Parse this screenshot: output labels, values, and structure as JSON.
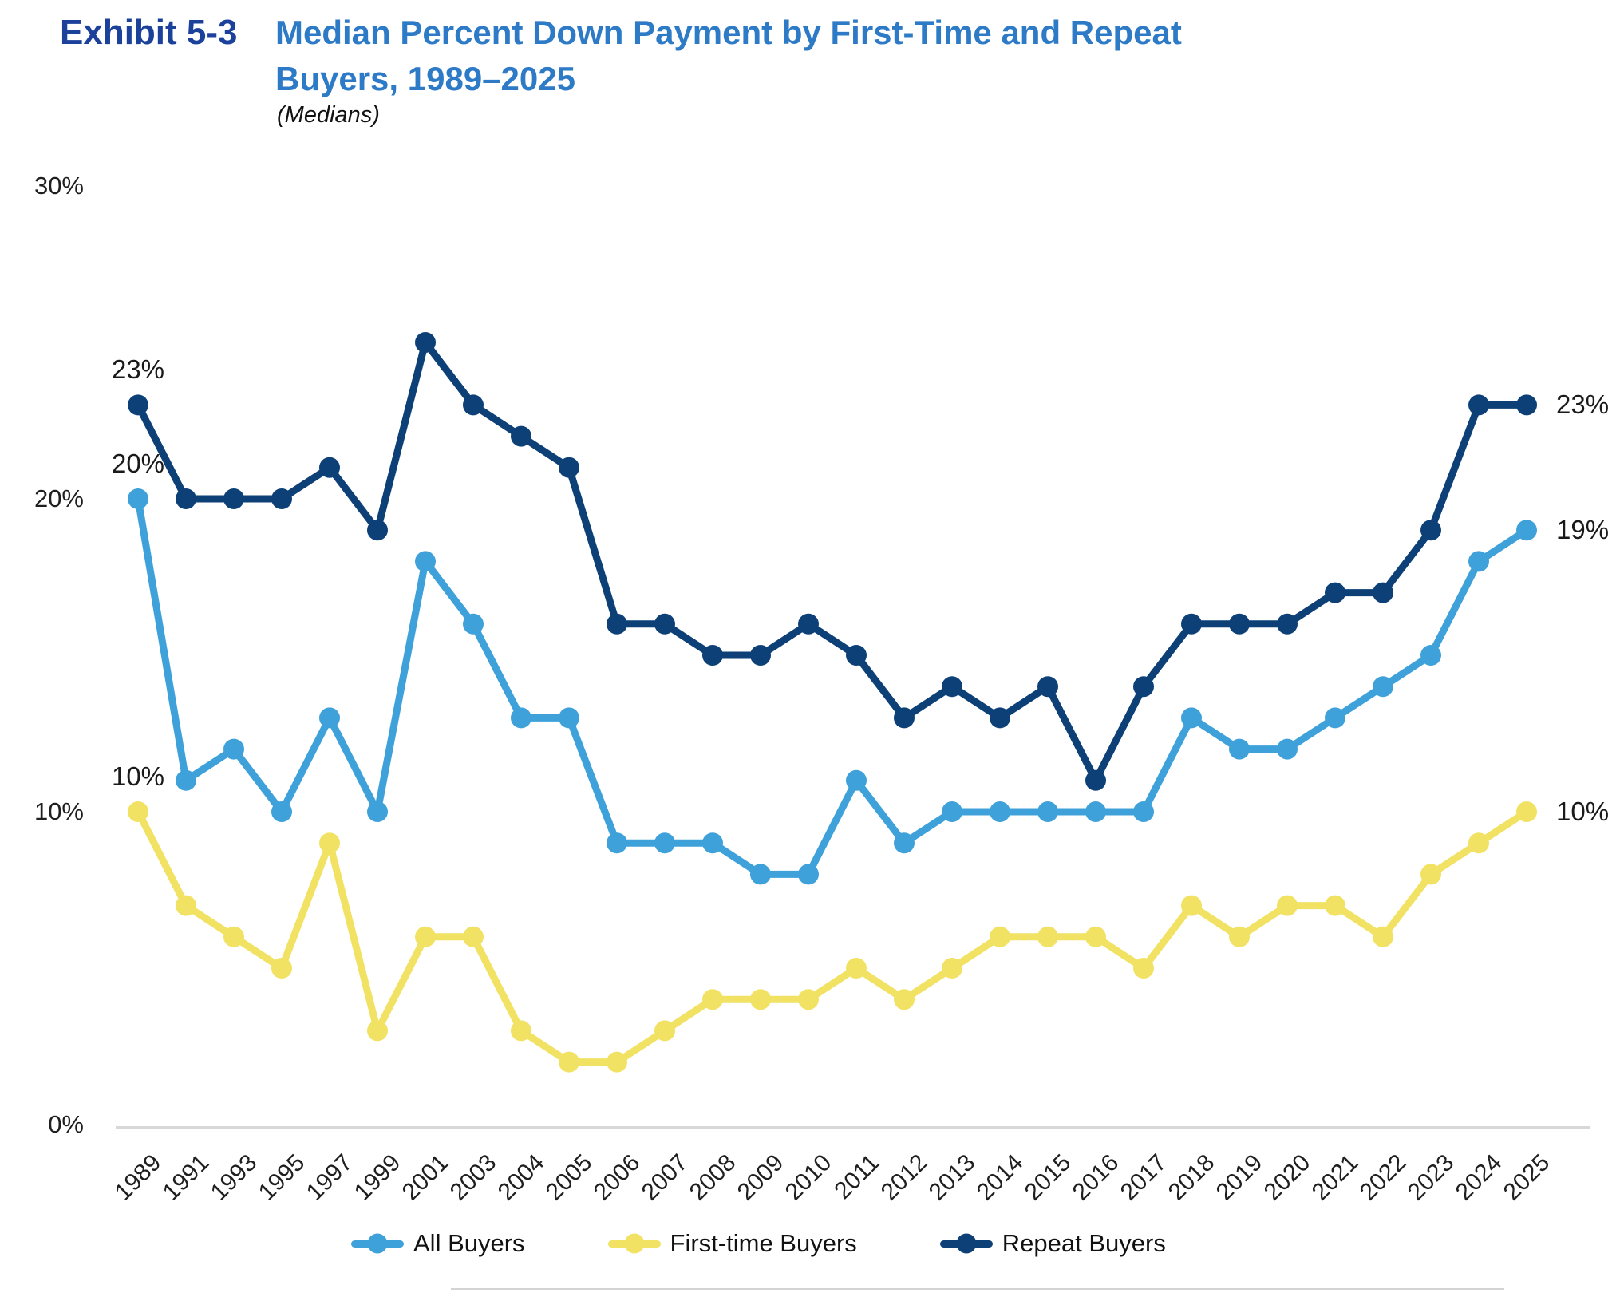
{
  "header": {
    "exhibit": "Exhibit 5-3",
    "title_line1": "Median Percent Down Payment by First-Time and Repeat",
    "title_line2": "Buyers, 1989–2025",
    "subtitle": "(Medians)"
  },
  "colors": {
    "all": "#3fa1da",
    "first_time": "#f1e263",
    "repeat": "#0d4076",
    "exhibit_blue": "#1c419b",
    "title_blue": "#2d7ac6",
    "axis_line": "#d8d8d8",
    "text": "#1f1f1f"
  },
  "chart_data": {
    "type": "line",
    "title": "Median Percent Down Payment by First-Time and Repeat Buyers, 1989–2025",
    "subtitle": "(Medians)",
    "categories": [
      "1989",
      "1991",
      "1993",
      "1995",
      "1997",
      "1999",
      "2001",
      "2003",
      "2004",
      "2005",
      "2006",
      "2007",
      "2008",
      "2009",
      "2010",
      "2011",
      "2012",
      "2013",
      "2014",
      "2015",
      "2016",
      "2017",
      "2018",
      "2019",
      "2020",
      "2021",
      "2022",
      "2023",
      "2024",
      "2025"
    ],
    "series": [
      {
        "name": "All Buyers",
        "color_key": "all",
        "values": [
          20,
          11,
          12,
          10,
          13,
          10,
          18,
          16,
          13,
          13,
          9,
          9,
          9,
          8,
          8,
          11,
          9,
          10,
          10,
          10,
          10,
          10,
          13,
          12,
          12,
          13,
          14,
          15,
          18,
          19
        ]
      },
      {
        "name": "First-time Buyers",
        "color_key": "first_time",
        "values": [
          10,
          7,
          6,
          5,
          9,
          3,
          6,
          6,
          3,
          2,
          2,
          3,
          4,
          4,
          4,
          5,
          4,
          5,
          6,
          6,
          6,
          5,
          7,
          6,
          7,
          7,
          6,
          8,
          9,
          10
        ]
      },
      {
        "name": "Repeat Buyers",
        "color_key": "repeat",
        "values": [
          23,
          20,
          20,
          20,
          21,
          19,
          25,
          23,
          22,
          21,
          16,
          16,
          15,
          15,
          16,
          15,
          13,
          14,
          13,
          14,
          11,
          14,
          16,
          16,
          16,
          17,
          17,
          19,
          23,
          23
        ]
      }
    ],
    "ylim": [
      0,
      30
    ],
    "grid": false,
    "legend_position": "bottom",
    "y_ticks": [
      {
        "value": 30,
        "label": "30%"
      },
      {
        "value": 20,
        "label": "20%"
      },
      {
        "value": 10,
        "label": "10%"
      },
      {
        "value": 0,
        "label": "0%"
      }
    ],
    "point_labels": [
      {
        "series": "Repeat Buyers",
        "year": "1989",
        "label": "23%",
        "position": "above"
      },
      {
        "series": "All Buyers",
        "year": "1989",
        "label": "20%",
        "position": "above"
      },
      {
        "series": "First-time Buyers",
        "year": "1989",
        "label": "10%",
        "position": "above"
      },
      {
        "series": "Repeat Buyers",
        "year": "2025",
        "label": "23%",
        "position": "right"
      },
      {
        "series": "All Buyers",
        "year": "2025",
        "label": "19%",
        "position": "right"
      },
      {
        "series": "First-time Buyers",
        "year": "2025",
        "label": "10%",
        "position": "right"
      }
    ],
    "legend": [
      "All Buyers",
      "First-time Buyers",
      "Repeat Buyers"
    ]
  }
}
